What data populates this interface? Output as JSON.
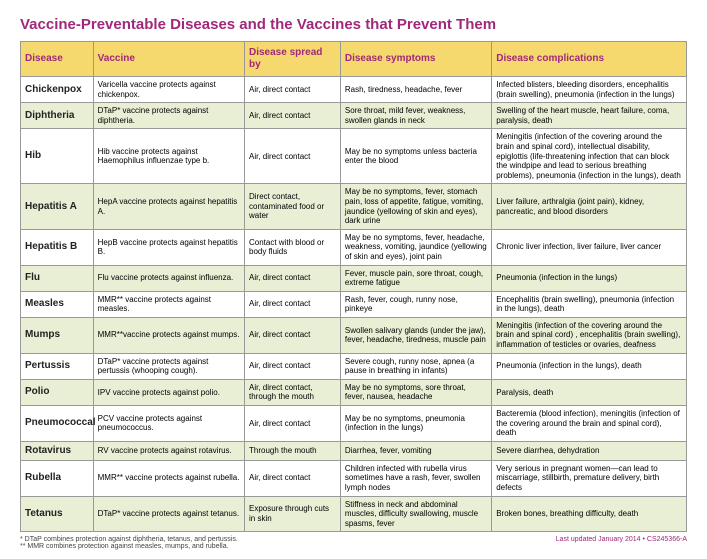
{
  "title": "Vaccine-Preventable Diseases and the Vaccines that Prevent Them",
  "columns": [
    "Disease",
    "Vaccine",
    "Disease spread by",
    "Disease symptoms",
    "Disease complications"
  ],
  "rows": [
    {
      "disease": "Chickenpox",
      "vaccine": "Varicella vaccine protects against chickenpox.",
      "spread": "Air, direct contact",
      "symptoms": "Rash, tiredness, headache, fever",
      "complications": "Infected blisters, bleeding disorders, encephalitis (brain swelling), pneumonia (infection in the lungs)",
      "shade": false
    },
    {
      "disease": "Diphtheria",
      "vaccine": "DTaP* vaccine protects against diphtheria.",
      "spread": "Air, direct contact",
      "symptoms": "Sore throat, mild fever, weakness, swollen glands in neck",
      "complications": "Swelling of the heart muscle, heart failure, coma, paralysis, death",
      "shade": true
    },
    {
      "disease": "Hib",
      "vaccine": "Hib vaccine protects against Haemophilus influenzae type b.",
      "spread": "Air, direct contact",
      "symptoms": "May be no symptoms unless bacteria enter the blood",
      "complications": "Meningitis (infection of the covering around the brain and spinal cord), intellectual disability, epiglottis (life-threatening infection that can block the windpipe and lead to serious breathing problems), pneumonia (infection in the lungs), death",
      "shade": false
    },
    {
      "disease": "Hepatitis A",
      "vaccine": "HepA vaccine protects against hepatitis A.",
      "spread": "Direct contact, contaminated food or water",
      "symptoms": "May be no symptoms, fever, stomach pain, loss of appetite, fatigue, vomiting, jaundice (yellowing of skin and eyes), dark urine",
      "complications": "Liver failure, arthralgia (joint pain), kidney, pancreatic, and blood disorders",
      "shade": true
    },
    {
      "disease": "Hepatitis B",
      "vaccine": "HepB vaccine protects against hepatitis B.",
      "spread": "Contact with blood or body fluids",
      "symptoms": "May be no symptoms, fever, headache, weakness, vomiting, jaundice (yellowing of skin and eyes), joint pain",
      "complications": "Chronic liver infection, liver failure, liver cancer",
      "shade": false
    },
    {
      "disease": "Flu",
      "vaccine": "Flu vaccine protects against influenza.",
      "spread": "Air, direct contact",
      "symptoms": "Fever, muscle pain, sore throat, cough, extreme fatigue",
      "complications": "Pneumonia (infection in the lungs)",
      "shade": true
    },
    {
      "disease": "Measles",
      "vaccine": "MMR** vaccine protects against measles.",
      "spread": "Air, direct contact",
      "symptoms": "Rash, fever, cough, runny nose, pinkeye",
      "complications": "Encephalitis (brain swelling), pneumonia (infection in the lungs), death",
      "shade": false
    },
    {
      "disease": "Mumps",
      "vaccine": "MMR**vaccine protects against mumps.",
      "spread": "Air, direct contact",
      "symptoms": "Swollen salivary glands (under the jaw), fever, headache, tiredness, muscle pain",
      "complications": "Meningitis (infection of the covering around the brain and spinal cord) , encephalitis (brain swelling), inflammation of testicles or ovaries, deafness",
      "shade": true
    },
    {
      "disease": "Pertussis",
      "vaccine": "DTaP* vaccine protects against pertussis (whooping cough).",
      "spread": "Air, direct contact",
      "symptoms": "Severe cough, runny nose, apnea (a pause in breathing in infants)",
      "complications": "Pneumonia (infection in the lungs), death",
      "shade": false
    },
    {
      "disease": "Polio",
      "vaccine": "IPV vaccine protects against polio.",
      "spread": "Air, direct contact, through the mouth",
      "symptoms": "May be no symptoms, sore throat, fever, nausea, headache",
      "complications": "Paralysis, death",
      "shade": true
    },
    {
      "disease": "Pneumococcal",
      "vaccine": "PCV vaccine protects against pneumococcus.",
      "spread": "Air, direct contact",
      "symptoms": "May be no symptoms, pneumonia (infection in the lungs)",
      "complications": "Bacteremia (blood infection), meningitis (infection of the covering around the brain and spinal cord), death",
      "shade": false
    },
    {
      "disease": "Rotavirus",
      "vaccine": "RV vaccine protects against rotavirus.",
      "spread": "Through the mouth",
      "symptoms": "Diarrhea, fever, vomiting",
      "complications": "Severe diarrhea, dehydration",
      "shade": true
    },
    {
      "disease": "Rubella",
      "vaccine": "MMR** vaccine protects against rubella.",
      "spread": "Air, direct contact",
      "symptoms": "Children infected with rubella virus sometimes have a rash, fever, swollen lymph nodes",
      "complications": "Very serious in pregnant women—can lead to miscarriage, stillbirth, premature delivery, birth defects",
      "shade": false
    },
    {
      "disease": "Tetanus",
      "vaccine": "DTaP* vaccine protects against tetanus.",
      "spread": "Exposure through cuts in skin",
      "symptoms": "Stiffness in neck and abdominal muscles, difficulty swallowing,  muscle spasms, fever",
      "complications": "Broken bones, breathing difficulty, death",
      "shade": true
    }
  ],
  "footnote1": "* DTaP combines protection against diphtheria, tetanus, and pertussis.",
  "footnote2": "** MMR combines protection against measles, mumps, and rubella.",
  "updated": "Last updated January 2014 • CS245366-A"
}
